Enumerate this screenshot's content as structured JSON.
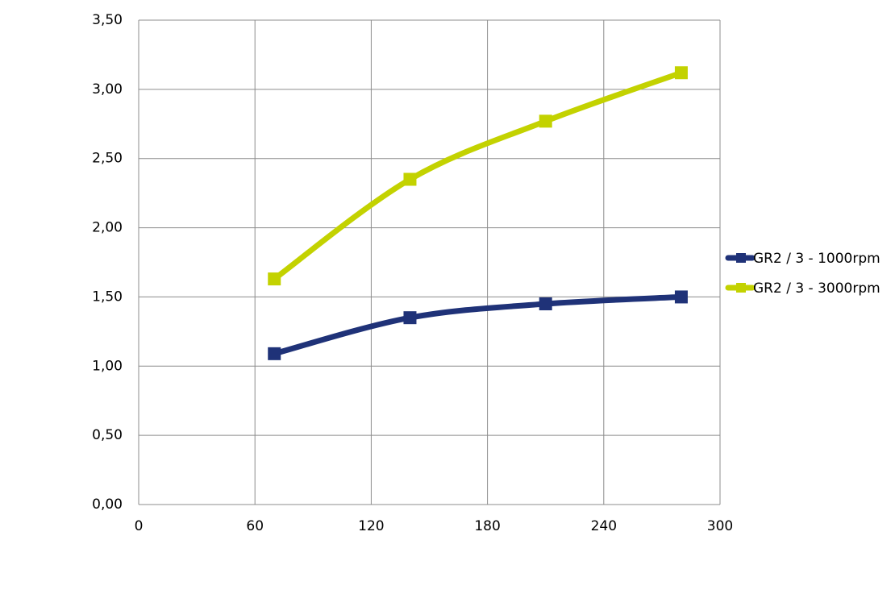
{
  "chart_data": {
    "type": "line",
    "series": [
      {
        "name": "GR2 / 3 - 1000rpm",
        "color": "#1f3278",
        "x": [
          70,
          140,
          210,
          280
        ],
        "values": [
          1.09,
          1.35,
          1.45,
          1.5
        ]
      },
      {
        "name": "GR2 / 3 - 3000rpm",
        "color": "#c3d200",
        "x": [
          70,
          140,
          210,
          280
        ],
        "values": [
          1.63,
          2.35,
          2.77,
          3.12
        ]
      }
    ],
    "xlim": [
      0,
      300
    ],
    "xticks": [
      0,
      60,
      120,
      180,
      240,
      300
    ],
    "ylim": [
      0,
      3.5
    ],
    "yticks": [
      {
        "value": 0,
        "label": "0,00"
      },
      {
        "value": 0.5,
        "label": "0,50"
      },
      {
        "value": 1,
        "label": "1,00"
      },
      {
        "value": 1.5,
        "label": "1,50"
      },
      {
        "value": 2,
        "label": "2,00"
      },
      {
        "value": 2.5,
        "label": "2,50"
      },
      {
        "value": 3,
        "label": "3,00"
      },
      {
        "value": 3.5,
        "label": "3,50"
      }
    ],
    "grid": true,
    "smooth": true,
    "legend": "right"
  }
}
